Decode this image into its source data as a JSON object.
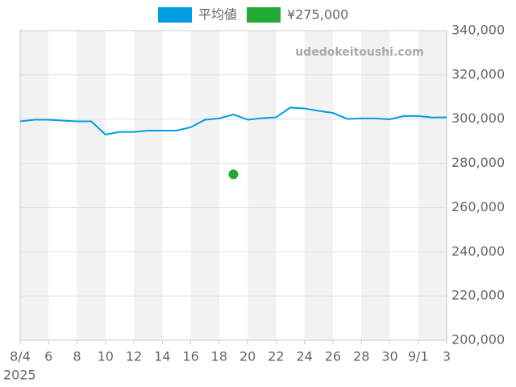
{
  "chart_data": {
    "type": "line",
    "watermark": "udedokeitoushi.com",
    "categories": [
      "8/4",
      null,
      "6",
      null,
      "8",
      null,
      "10",
      null,
      "12",
      null,
      "14",
      null,
      "16",
      null,
      "18",
      null,
      "20",
      null,
      "22",
      null,
      "24",
      null,
      "26",
      null,
      "28",
      null,
      "30",
      null,
      "9/1",
      null,
      "3"
    ],
    "x_sublabel": "2025",
    "series": [
      {
        "name": "平均値",
        "color": "#009de0",
        "style": "line",
        "values": [
          299000,
          299700,
          299700,
          299300,
          299000,
          299000,
          293000,
          294200,
          294200,
          294800,
          294800,
          294800,
          296300,
          299700,
          300300,
          302100,
          299700,
          300400,
          300800,
          305200,
          304800,
          303700,
          302800,
          300100,
          300300,
          300300,
          299900,
          301400,
          301400,
          300700,
          300800
        ]
      },
      {
        "name": "¥275,000",
        "color": "#22aa33",
        "style": "marker",
        "values": [
          null,
          null,
          null,
          null,
          null,
          null,
          null,
          null,
          null,
          null,
          null,
          null,
          null,
          null,
          null,
          275000,
          null,
          null,
          null,
          null,
          null,
          null,
          null,
          null,
          null,
          null,
          null,
          null,
          null,
          null,
          null
        ]
      }
    ],
    "ylim": [
      200000,
      340000
    ],
    "yticks": [
      {
        "value": 200000,
        "label": "200,000"
      },
      {
        "value": 220000,
        "label": "220,000"
      },
      {
        "value": 240000,
        "label": "240,000"
      },
      {
        "value": 260000,
        "label": "260,000"
      },
      {
        "value": 280000,
        "label": "280,000"
      },
      {
        "value": 300000,
        "label": "300,000"
      },
      {
        "value": 320000,
        "label": "320,000"
      },
      {
        "value": 340000,
        "label": "340,000"
      }
    ],
    "grid": true
  }
}
